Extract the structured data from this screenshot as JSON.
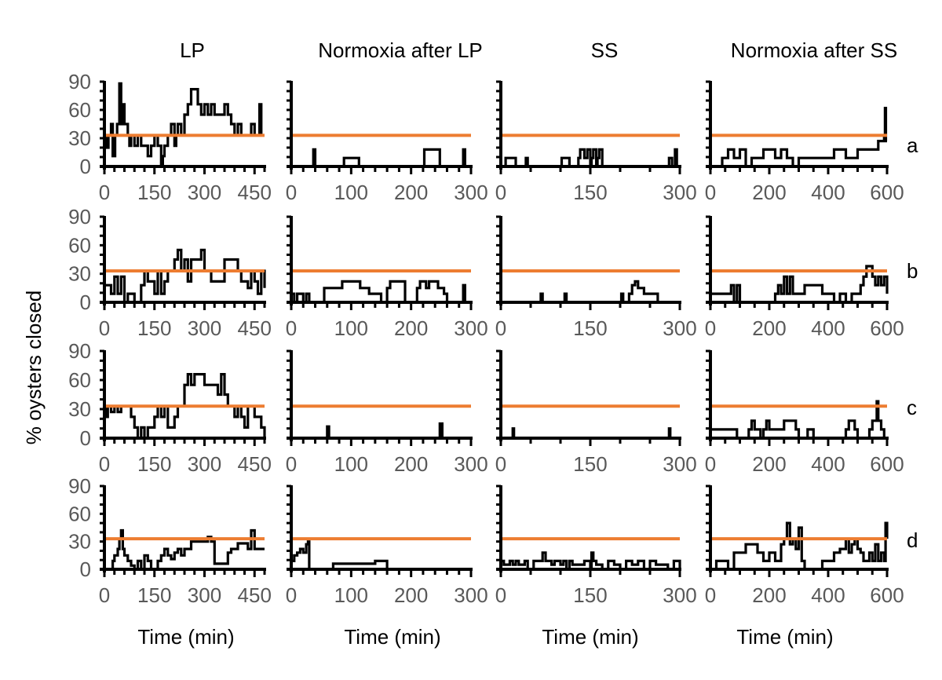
{
  "figure": {
    "ylabel": "% oysters closed",
    "xlabel": "Time (min)",
    "columns": [
      {
        "title": "LP",
        "xlim": [
          0,
          480
        ],
        "xticks": [
          0,
          150,
          300,
          450
        ],
        "minor_step": 30
      },
      {
        "title": "Normoxia after LP",
        "xlim": [
          0,
          300
        ],
        "xticks": [
          0,
          100,
          200,
          300
        ],
        "minor_step": 20
      },
      {
        "title": "SS",
        "xlim": [
          0,
          300
        ],
        "xticks": [
          0,
          150,
          300
        ],
        "minor_step": 50
      },
      {
        "title": "Normoxia after SS",
        "xlim": [
          0,
          600
        ],
        "xticks": [
          0,
          200,
          400,
          600
        ],
        "minor_step": 50
      }
    ],
    "rows": [
      "a",
      "b",
      "c",
      "d"
    ],
    "ylim": [
      0,
      90
    ],
    "yticks": [
      0,
      30,
      60,
      90
    ],
    "colors": {
      "series": "#000000",
      "threshold": "#ED7D31",
      "tick_text": "#595959"
    }
  },
  "chart_data": {
    "type": "line",
    "title": "",
    "xlabel": "Time (min)",
    "ylabel": "% oysters closed",
    "ylim": [
      0,
      90
    ],
    "grid": false,
    "legend": "none",
    "panels": [
      {
        "row": "a",
        "column": "LP",
        "threshold": 33,
        "x": [
          0,
          8,
          12,
          20,
          25,
          32,
          38,
          45,
          50,
          55,
          60,
          65,
          70,
          75,
          80,
          90,
          100,
          110,
          120,
          130,
          140,
          150,
          160,
          170,
          175,
          180,
          190,
          200,
          210,
          215,
          220,
          230,
          240,
          250,
          260,
          270,
          280,
          290,
          300,
          310,
          320,
          330,
          340,
          350,
          360,
          370,
          380,
          390,
          400,
          410,
          420,
          430,
          440,
          450,
          460,
          465,
          470
        ],
        "y": [
          33,
          20,
          33,
          45,
          11,
          33,
          45,
          88,
          45,
          66,
          45,
          45,
          33,
          22,
          33,
          22,
          33,
          22,
          22,
          11,
          22,
          33,
          22,
          0,
          11,
          22,
          33,
          45,
          22,
          33,
          45,
          33,
          55,
          66,
          82,
          82,
          66,
          55,
          66,
          55,
          66,
          55,
          55,
          55,
          66,
          55,
          45,
          33,
          45,
          33,
          33,
          33,
          45,
          33,
          33,
          66,
          33
        ]
      },
      {
        "row": "a",
        "column": "Normoxia after LP",
        "threshold": 33,
        "x": [
          0,
          35,
          37,
          40,
          85,
          88,
          110,
          113,
          220,
          222,
          245,
          248,
          285,
          287,
          290,
          300
        ],
        "y": [
          0,
          0,
          18,
          0,
          0,
          9,
          9,
          0,
          0,
          18,
          18,
          0,
          0,
          18,
          0,
          0
        ]
      },
      {
        "row": "a",
        "column": "SS",
        "threshold": 33,
        "x": [
          0,
          5,
          8,
          12,
          20,
          25,
          40,
          42,
          45,
          100,
          102,
          110,
          115,
          130,
          133,
          140,
          145,
          150,
          152,
          155,
          160,
          162,
          165,
          170,
          230,
          280,
          282,
          287,
          290,
          292,
          295,
          300
        ],
        "y": [
          0,
          0,
          9,
          9,
          9,
          0,
          0,
          9,
          0,
          0,
          9,
          9,
          0,
          9,
          18,
          9,
          18,
          0,
          9,
          18,
          0,
          9,
          18,
          0,
          0,
          0,
          9,
          0,
          0,
          18,
          0,
          0
        ]
      },
      {
        "row": "a",
        "column": "Normoxia after SS",
        "threshold": 33,
        "x": [
          0,
          40,
          50,
          60,
          80,
          100,
          120,
          140,
          160,
          180,
          200,
          220,
          240,
          260,
          280,
          300,
          320,
          340,
          380,
          420,
          460,
          500,
          520,
          560,
          570,
          580,
          590,
          593,
          596,
          600
        ],
        "y": [
          0,
          9,
          9,
          18,
          9,
          18,
          0,
          9,
          9,
          18,
          18,
          9,
          18,
          9,
          0,
          9,
          9,
          9,
          9,
          18,
          9,
          18,
          18,
          18,
          27,
          27,
          33,
          62,
          27,
          27
        ]
      },
      {
        "row": "b",
        "column": "LP",
        "threshold": 33,
        "x": [
          0,
          10,
          20,
          30,
          40,
          50,
          60,
          70,
          80,
          90,
          100,
          110,
          120,
          130,
          140,
          150,
          160,
          170,
          180,
          190,
          200,
          210,
          220,
          230,
          240,
          250,
          260,
          270,
          280,
          290,
          300,
          310,
          320,
          340,
          360,
          370,
          380,
          400,
          410,
          420,
          430,
          440,
          450,
          460,
          470,
          480
        ],
        "y": [
          18,
          18,
          9,
          27,
          9,
          27,
          0,
          9,
          9,
          0,
          0,
          18,
          33,
          22,
          22,
          9,
          33,
          9,
          22,
          33,
          33,
          45,
          55,
          33,
          45,
          22,
          45,
          45,
          45,
          55,
          33,
          33,
          22,
          22,
          45,
          45,
          45,
          33,
          22,
          22,
          15,
          33,
          22,
          9,
          33,
          15
        ]
      },
      {
        "row": "b",
        "column": "Normoxia after LP",
        "threshold": 33,
        "x": [
          0,
          5,
          10,
          20,
          25,
          30,
          50,
          55,
          70,
          80,
          85,
          90,
          95,
          110,
          115,
          125,
          130,
          145,
          150,
          160,
          165,
          170,
          180,
          190,
          200,
          210,
          215,
          225,
          230,
          235,
          245,
          255,
          260,
          265,
          285,
          287,
          290,
          300
        ],
        "y": [
          9,
          0,
          9,
          0,
          9,
          0,
          0,
          15,
          15,
          15,
          22,
          22,
          22,
          22,
          15,
          15,
          9,
          9,
          0,
          15,
          22,
          22,
          22,
          0,
          0,
          15,
          22,
          15,
          22,
          22,
          15,
          9,
          0,
          0,
          0,
          18,
          0,
          0
        ]
      },
      {
        "row": "b",
        "column": "SS",
        "threshold": 33,
        "x": [
          0,
          65,
          67,
          70,
          105,
          107,
          110,
          200,
          202,
          205,
          215,
          220,
          225,
          230,
          235,
          240,
          260,
          263,
          300
        ],
        "y": [
          0,
          0,
          9,
          0,
          0,
          9,
          0,
          0,
          9,
          0,
          9,
          18,
          22,
          15,
          15,
          9,
          9,
          0,
          0
        ]
      },
      {
        "row": "b",
        "column": "Normoxia after SS",
        "threshold": 33,
        "x": [
          0,
          60,
          70,
          80,
          90,
          100,
          110,
          200,
          220,
          230,
          240,
          250,
          260,
          270,
          280,
          300,
          320,
          340,
          360,
          380,
          400,
          420,
          440,
          460,
          480,
          500,
          510,
          520,
          530,
          540,
          550,
          560,
          570,
          580,
          590,
          600
        ],
        "y": [
          9,
          9,
          18,
          0,
          18,
          0,
          0,
          0,
          9,
          18,
          9,
          27,
          9,
          27,
          9,
          9,
          18,
          18,
          18,
          9,
          9,
          0,
          9,
          0,
          9,
          9,
          18,
          27,
          38,
          38,
          27,
          18,
          27,
          18,
          27,
          9
        ]
      },
      {
        "row": "c",
        "column": "LP",
        "threshold": 33,
        "x": [
          0,
          5,
          10,
          20,
          30,
          40,
          50,
          60,
          70,
          80,
          90,
          100,
          110,
          120,
          130,
          140,
          150,
          160,
          170,
          180,
          190,
          200,
          210,
          220,
          230,
          240,
          250,
          260,
          270,
          280,
          300,
          320,
          340,
          350,
          360,
          370,
          380,
          390,
          400,
          410,
          420,
          430,
          440,
          450,
          460,
          470,
          480
        ],
        "y": [
          33,
          22,
          33,
          27,
          33,
          27,
          33,
          33,
          33,
          22,
          11,
          0,
          11,
          0,
          11,
          11,
          22,
          33,
          22,
          33,
          11,
          11,
          22,
          33,
          33,
          55,
          66,
          55,
          66,
          66,
          55,
          55,
          45,
          66,
          45,
          33,
          33,
          22,
          33,
          22,
          11,
          33,
          33,
          22,
          22,
          11,
          0
        ]
      },
      {
        "row": "c",
        "column": "Normoxia after LP",
        "threshold": 33,
        "x": [
          0,
          57,
          60,
          63,
          245,
          248,
          252,
          300
        ],
        "y": [
          0,
          0,
          12,
          0,
          0,
          15,
          0,
          0
        ]
      },
      {
        "row": "c",
        "column": "SS",
        "threshold": 33,
        "x": [
          0,
          18,
          20,
          22,
          280,
          282,
          284,
          300
        ],
        "y": [
          0,
          0,
          10,
          0,
          0,
          10,
          0,
          0
        ]
      },
      {
        "row": "c",
        "column": "Normoxia after SS",
        "threshold": 33,
        "x": [
          0,
          80,
          90,
          120,
          130,
          140,
          150,
          170,
          180,
          190,
          200,
          240,
          250,
          260,
          270,
          280,
          290,
          300,
          320,
          330,
          350,
          450,
          460,
          470,
          480,
          490,
          500,
          530,
          540,
          550,
          560,
          565,
          570,
          580,
          590,
          600
        ],
        "y": [
          9,
          9,
          0,
          0,
          9,
          18,
          9,
          0,
          9,
          18,
          9,
          9,
          18,
          18,
          18,
          18,
          9,
          0,
          0,
          9,
          0,
          0,
          9,
          18,
          18,
          9,
          0,
          0,
          9,
          18,
          18,
          38,
          18,
          9,
          0,
          0
        ]
      },
      {
        "row": "d",
        "column": "LP",
        "threshold": 33,
        "x": [
          0,
          20,
          25,
          30,
          35,
          40,
          45,
          50,
          55,
          60,
          70,
          80,
          90,
          100,
          110,
          120,
          130,
          140,
          150,
          160,
          170,
          180,
          190,
          200,
          210,
          220,
          230,
          240,
          250,
          260,
          270,
          300,
          310,
          320,
          330,
          340,
          350,
          370,
          380,
          390,
          400,
          420,
          430,
          440,
          450,
          460,
          470,
          480
        ],
        "y": [
          0,
          0,
          9,
          15,
          15,
          22,
          33,
          42,
          22,
          15,
          9,
          4,
          0,
          9,
          0,
          15,
          9,
          0,
          0,
          9,
          15,
          22,
          15,
          11,
          18,
          22,
          15,
          22,
          22,
          30,
          30,
          30,
          35,
          30,
          6,
          6,
          6,
          18,
          22,
          22,
          28,
          28,
          22,
          42,
          22,
          22,
          22,
          22
        ]
      },
      {
        "row": "d",
        "column": "Normoxia after LP",
        "threshold": 33,
        "x": [
          0,
          5,
          10,
          15,
          20,
          25,
          28,
          30,
          32,
          60,
          70,
          80,
          120,
          130,
          140,
          150,
          160,
          300
        ],
        "y": [
          9,
          15,
          18,
          22,
          18,
          27,
          30,
          0,
          0,
          0,
          6,
          6,
          6,
          6,
          9,
          9,
          0,
          0
        ]
      },
      {
        "row": "d",
        "column": "SS",
        "threshold": 33,
        "x": [
          0,
          5,
          15,
          20,
          25,
          30,
          40,
          45,
          55,
          60,
          70,
          75,
          80,
          85,
          90,
          95,
          100,
          105,
          110,
          115,
          120,
          130,
          140,
          150,
          152,
          155,
          160,
          170,
          180,
          190,
          200,
          210,
          220,
          230,
          240,
          250,
          260,
          270,
          280,
          290,
          300
        ],
        "y": [
          9,
          5,
          9,
          5,
          9,
          5,
          9,
          0,
          9,
          9,
          18,
          9,
          9,
          5,
          9,
          9,
          5,
          9,
          0,
          9,
          5,
          5,
          9,
          0,
          18,
          9,
          5,
          0,
          9,
          5,
          0,
          9,
          5,
          9,
          0,
          9,
          5,
          5,
          0,
          9,
          0
        ]
      },
      {
        "row": "d",
        "column": "Normoxia after SS",
        "threshold": 33,
        "x": [
          0,
          20,
          40,
          60,
          80,
          100,
          120,
          140,
          160,
          180,
          200,
          220,
          240,
          250,
          260,
          270,
          280,
          290,
          300,
          310,
          320,
          340,
          360,
          380,
          400,
          420,
          440,
          460,
          470,
          480,
          490,
          500,
          510,
          520,
          540,
          550,
          560,
          570,
          580,
          590,
          595,
          600
        ],
        "y": [
          0,
          9,
          9,
          0,
          18,
          18,
          27,
          27,
          18,
          9,
          18,
          9,
          27,
          33,
          50,
          27,
          33,
          22,
          45,
          9,
          0,
          0,
          0,
          9,
          9,
          18,
          22,
          33,
          18,
          27,
          33,
          22,
          18,
          9,
          18,
          9,
          27,
          9,
          18,
          9,
          50,
          33
        ]
      }
    ]
  }
}
